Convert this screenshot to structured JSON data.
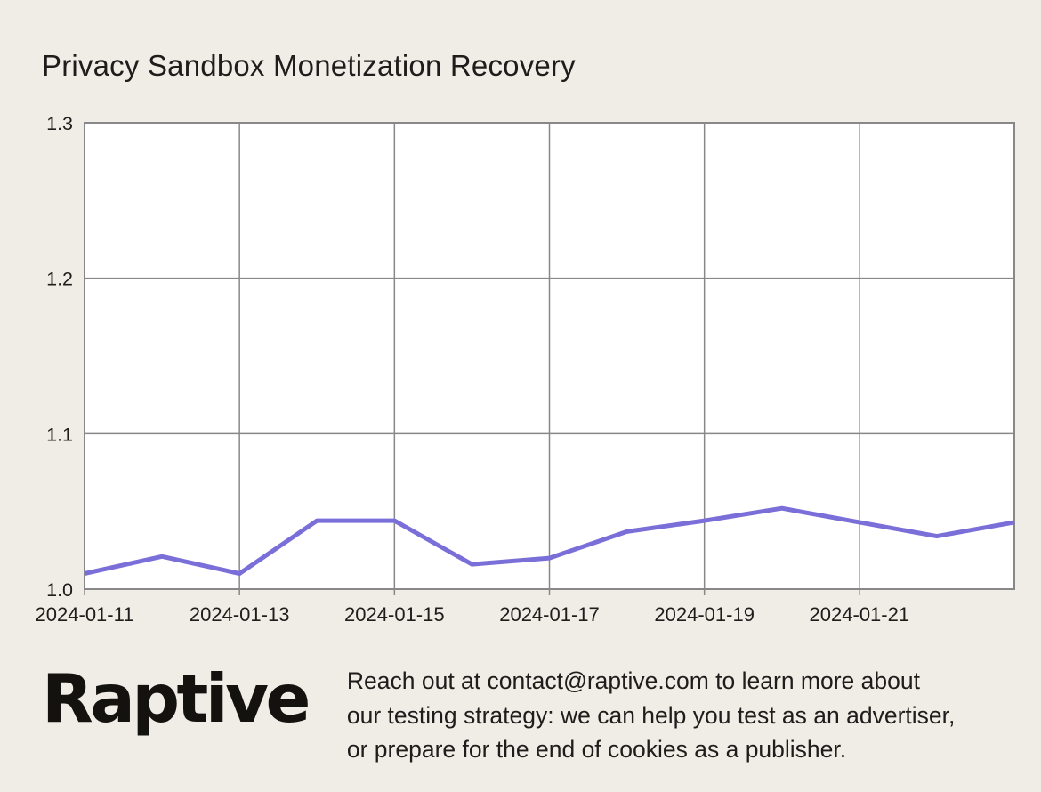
{
  "title": "Privacy Sandbox Monetization Recovery",
  "colors": {
    "background": "#f0ede7",
    "plot_background": "#ffffff",
    "grid": "#888888",
    "line": "#7a6fd8",
    "text": "#1f1d1b",
    "logo": "#14120f"
  },
  "chart_data": {
    "type": "line",
    "title": "Privacy Sandbox Monetization Recovery",
    "x": [
      "2024-01-11",
      "2024-01-12",
      "2024-01-13",
      "2024-01-14",
      "2024-01-15",
      "2024-01-16",
      "2024-01-17",
      "2024-01-18",
      "2024-01-19",
      "2024-01-20",
      "2024-01-21",
      "2024-01-22",
      "2024-01-23"
    ],
    "values": [
      1.01,
      1.021,
      1.01,
      1.044,
      1.044,
      1.016,
      1.02,
      1.037,
      1.044,
      1.052,
      1.043,
      1.034,
      1.043
    ],
    "x_tick_labels": [
      "2024-01-11",
      "2024-01-13",
      "2024-01-15",
      "2024-01-17",
      "2024-01-19",
      "2024-01-21"
    ],
    "y_ticks": [
      1.0,
      1.1,
      1.2,
      1.3
    ],
    "ylim": [
      1.0,
      1.3
    ],
    "xlabel": "",
    "ylabel": "",
    "grid": true,
    "legend": "none",
    "line_color": "#7a6fd8"
  },
  "footer": {
    "logo_text": "Raptive",
    "message_lines": [
      "Reach out at contact@raptive.com to learn more about",
      "our testing strategy: we can help you test as an advertiser,",
      "or prepare for the end of cookies as a publisher."
    ]
  }
}
